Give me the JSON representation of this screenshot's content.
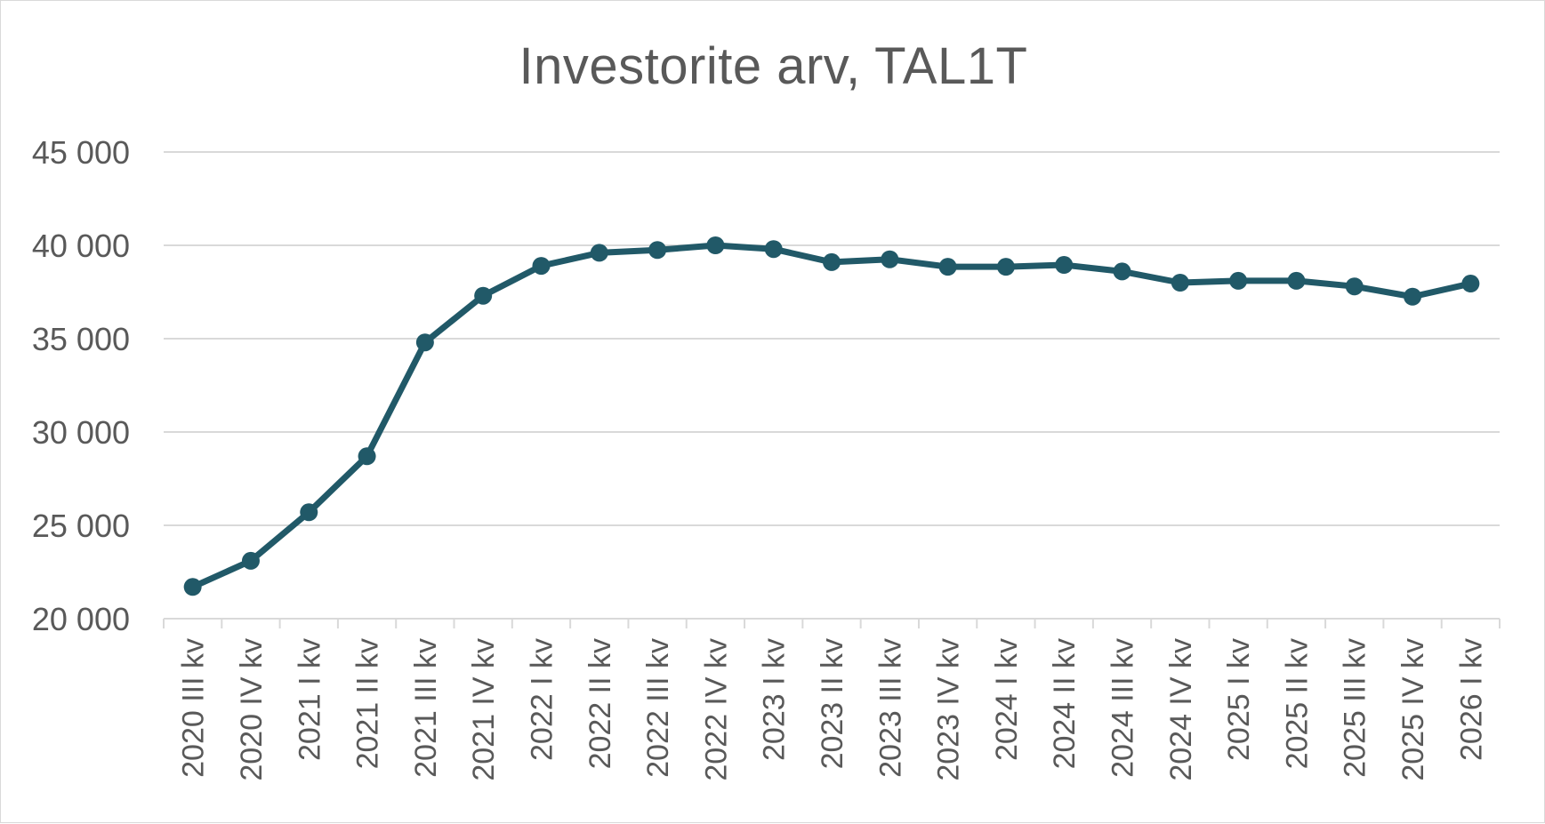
{
  "chart_data": {
    "type": "line",
    "title": "Investorite arv, TAL1T",
    "xlabel": "",
    "ylabel": "",
    "categories": [
      "2020 III kv",
      "2020 IV kv",
      "2021 I kv",
      "2021 II kv",
      "2021 III kv",
      "2021 IV kv",
      "2022 I kv",
      "2022 II kv",
      "2022 III kv",
      "2022 IV kv",
      "2023 I kv",
      "2023 II kv",
      "2023 III kv",
      "2023 IV kv",
      "2024 I kv",
      "2024 II kv",
      "2024 III kv",
      "2024 IV kv",
      "2025 I kv",
      "2025 II kv",
      "2025 III kv",
      "2025 IV kv",
      "2026 I kv"
    ],
    "series": [
      {
        "values": [
          21700,
          23100,
          25700,
          28700,
          34800,
          37300,
          38900,
          39600,
          39750,
          40000,
          39800,
          39100,
          39250,
          38850,
          38850,
          38950,
          38600,
          38000,
          38100,
          38100,
          37800,
          37250,
          37950
        ],
        "color": "#215968"
      }
    ],
    "ylim": [
      20000,
      45000
    ],
    "yticks": [
      20000,
      25000,
      30000,
      35000,
      40000,
      45000
    ],
    "ytick_labels": [
      "20 000",
      "25 000",
      "30 000",
      "35 000",
      "40 000",
      "45 000"
    ],
    "grid": true,
    "legend": "none",
    "line_color": "#215968",
    "grid_color": "#d9d9d9",
    "text_color": "#595959"
  }
}
